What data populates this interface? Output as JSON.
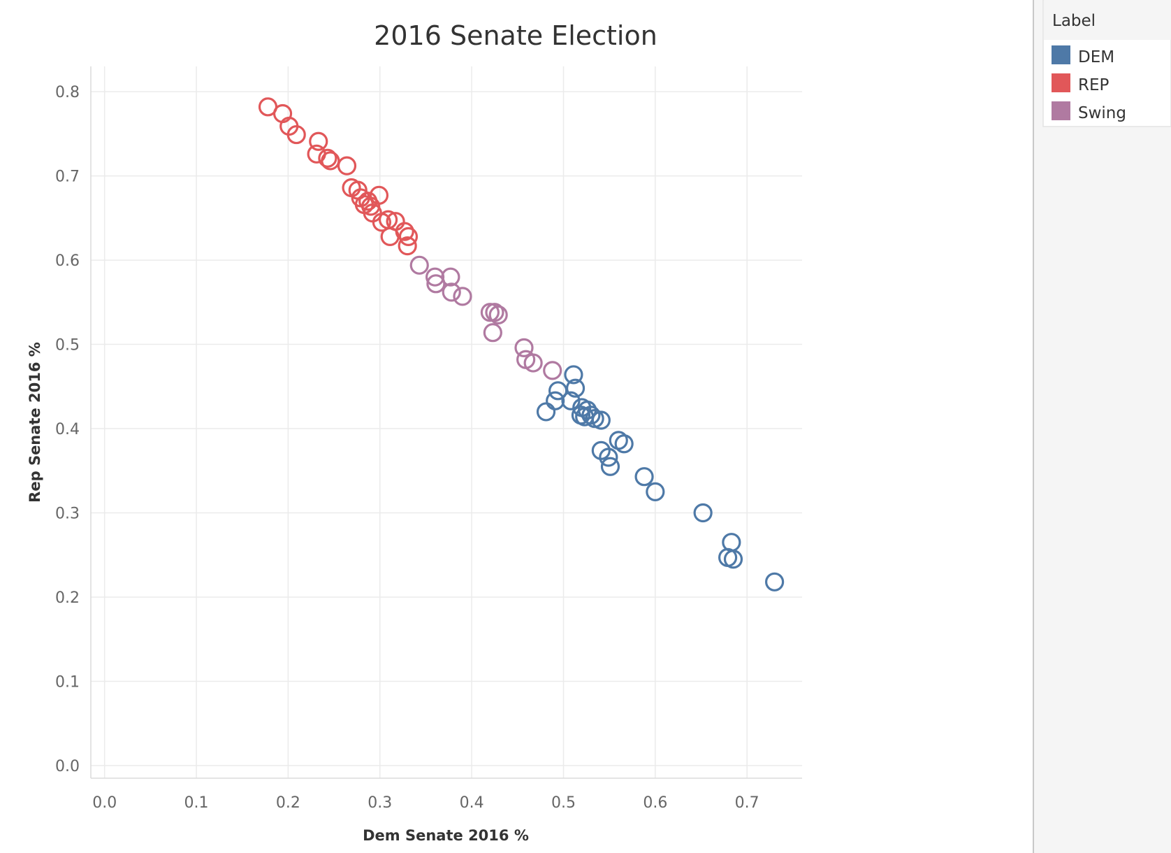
{
  "chart_data": {
    "type": "scatter",
    "title": "2016 Senate Election",
    "xlabel": "Dem Senate 2016 %",
    "ylabel": "Rep Senate 2016 %",
    "xlim": [
      -0.015,
      0.76
    ],
    "ylim": [
      -0.015,
      0.83
    ],
    "x_ticks": [
      "0.0",
      "0.1",
      "0.2",
      "0.3",
      "0.4",
      "0.5",
      "0.6",
      "0.7"
    ],
    "y_ticks": [
      "0.0",
      "0.1",
      "0.2",
      "0.3",
      "0.4",
      "0.5",
      "0.6",
      "0.7",
      "0.8"
    ],
    "grid": true,
    "marker": "hollow circle",
    "legend": {
      "title": "Label",
      "position": "right",
      "items": [
        {
          "name": "DEM",
          "color": "#4e79a7"
        },
        {
          "name": "REP",
          "color": "#e15759"
        },
        {
          "name": "Swing",
          "color": "#b07aa1"
        }
      ]
    },
    "series": [
      {
        "name": "REP",
        "color": "#e15759",
        "points": [
          [
            0.178,
            0.782
          ],
          [
            0.194,
            0.774
          ],
          [
            0.201,
            0.759
          ],
          [
            0.209,
            0.749
          ],
          [
            0.233,
            0.741
          ],
          [
            0.231,
            0.726
          ],
          [
            0.243,
            0.721
          ],
          [
            0.246,
            0.718
          ],
          [
            0.264,
            0.712
          ],
          [
            0.269,
            0.686
          ],
          [
            0.276,
            0.683
          ],
          [
            0.299,
            0.677
          ],
          [
            0.279,
            0.674
          ],
          [
            0.287,
            0.67
          ],
          [
            0.283,
            0.666
          ],
          [
            0.29,
            0.664
          ],
          [
            0.292,
            0.656
          ],
          [
            0.302,
            0.645
          ],
          [
            0.309,
            0.648
          ],
          [
            0.317,
            0.646
          ],
          [
            0.327,
            0.634
          ],
          [
            0.331,
            0.628
          ],
          [
            0.311,
            0.628
          ],
          [
            0.33,
            0.617
          ]
        ]
      },
      {
        "name": "Swing",
        "color": "#b07aa1",
        "points": [
          [
            0.343,
            0.594
          ],
          [
            0.36,
            0.58
          ],
          [
            0.377,
            0.58
          ],
          [
            0.361,
            0.572
          ],
          [
            0.378,
            0.562
          ],
          [
            0.39,
            0.557
          ],
          [
            0.42,
            0.538
          ],
          [
            0.425,
            0.538
          ],
          [
            0.429,
            0.535
          ],
          [
            0.423,
            0.514
          ],
          [
            0.457,
            0.496
          ],
          [
            0.459,
            0.482
          ],
          [
            0.467,
            0.478
          ],
          [
            0.488,
            0.469
          ]
        ]
      },
      {
        "name": "DEM",
        "color": "#4e79a7",
        "points": [
          [
            0.511,
            0.464
          ],
          [
            0.513,
            0.448
          ],
          [
            0.494,
            0.445
          ],
          [
            0.508,
            0.433
          ],
          [
            0.491,
            0.433
          ],
          [
            0.481,
            0.42
          ],
          [
            0.52,
            0.425
          ],
          [
            0.526,
            0.422
          ],
          [
            0.53,
            0.416
          ],
          [
            0.523,
            0.414
          ],
          [
            0.519,
            0.416
          ],
          [
            0.534,
            0.412
          ],
          [
            0.541,
            0.41
          ],
          [
            0.56,
            0.386
          ],
          [
            0.566,
            0.382
          ],
          [
            0.541,
            0.374
          ],
          [
            0.549,
            0.366
          ],
          [
            0.551,
            0.355
          ],
          [
            0.588,
            0.343
          ],
          [
            0.6,
            0.325
          ],
          [
            0.652,
            0.3
          ],
          [
            0.683,
            0.265
          ],
          [
            0.679,
            0.247
          ],
          [
            0.685,
            0.245
          ],
          [
            0.73,
            0.218
          ]
        ]
      }
    ]
  }
}
